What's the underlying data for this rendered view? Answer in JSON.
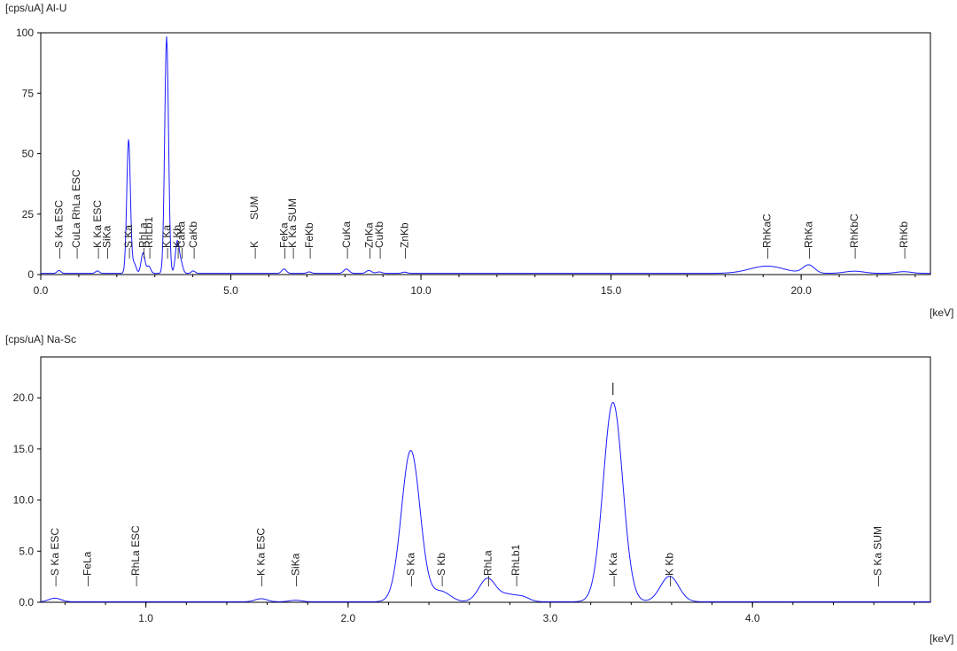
{
  "chart_data": [
    {
      "type": "line",
      "ylabel": "[cps/uA] Al-U",
      "xlabel": "[keV]",
      "xlim": [
        0,
        23.4
      ],
      "ylim": [
        0,
        100
      ],
      "x_ticks": [
        {
          "value": 0,
          "label": "0.0"
        },
        {
          "value": 5,
          "label": "5.0"
        },
        {
          "value": 10,
          "label": "10.0"
        },
        {
          "value": 15,
          "label": "15.0"
        },
        {
          "value": 20,
          "label": "20.0"
        }
      ],
      "y_ticks": [
        {
          "value": 0,
          "label": "0"
        },
        {
          "value": 25,
          "label": "25"
        },
        {
          "value": 50,
          "label": "50"
        },
        {
          "value": 75,
          "label": "75"
        },
        {
          "value": 100,
          "label": "100"
        }
      ],
      "peaks": [
        {
          "x": 0.48,
          "h": 1.2,
          "w": 0.05
        },
        {
          "x": 1.49,
          "h": 1.0,
          "w": 0.05
        },
        {
          "x": 2.31,
          "h": 55.5,
          "w": 0.048
        },
        {
          "x": 2.46,
          "h": 4.0,
          "w": 0.05
        },
        {
          "x": 2.69,
          "h": 8.5,
          "w": 0.05
        },
        {
          "x": 2.84,
          "h": 3.0,
          "w": 0.05
        },
        {
          "x": 3.31,
          "h": 98,
          "w": 0.05
        },
        {
          "x": 3.59,
          "h": 13,
          "w": 0.05
        },
        {
          "x": 3.69,
          "h": 4.0,
          "w": 0.05
        },
        {
          "x": 4.01,
          "h": 1.0,
          "w": 0.05
        },
        {
          "x": 6.4,
          "h": 1.8,
          "w": 0.06
        },
        {
          "x": 7.06,
          "h": 0.6,
          "w": 0.06
        },
        {
          "x": 8.04,
          "h": 1.8,
          "w": 0.07
        },
        {
          "x": 8.63,
          "h": 1.2,
          "w": 0.07
        },
        {
          "x": 8.9,
          "h": 0.6,
          "w": 0.07
        },
        {
          "x": 9.57,
          "h": 0.5,
          "w": 0.07
        },
        {
          "x": 19.1,
          "h": 3.0,
          "w": 0.45
        },
        {
          "x": 20.2,
          "h": 3.4,
          "w": 0.15
        },
        {
          "x": 21.4,
          "h": 0.9,
          "w": 0.25
        },
        {
          "x": 22.7,
          "h": 0.7,
          "w": 0.2
        }
      ],
      "baseline": 0.5,
      "annotations": [
        {
          "x": 0.48,
          "top": "S Ka ESC",
          "bottom": ""
        },
        {
          "x": 0.93,
          "top": "CuLa RhLa ESC",
          "bottom": ""
        },
        {
          "x": 1.49,
          "top": "K Ka ESC",
          "bottom": ""
        },
        {
          "x": 1.74,
          "top": "SiKa",
          "bottom": ""
        },
        {
          "x": 2.31,
          "top": "S Ka",
          "bottom": ""
        },
        {
          "x": 2.69,
          "top": "RhLa",
          "bottom": ""
        },
        {
          "x": 2.84,
          "top": "RhLb1",
          "bottom": ""
        },
        {
          "x": 3.31,
          "top": "K Ka",
          "bottom": ""
        },
        {
          "x": 3.59,
          "top": "K Kb",
          "bottom": ""
        },
        {
          "x": 3.69,
          "top": "CaKa",
          "bottom": ""
        },
        {
          "x": 4.01,
          "top": "CaKb",
          "bottom": ""
        },
        {
          "x": 5.62,
          "top": "K",
          "bottom": "SUM"
        },
        {
          "x": 6.4,
          "top": "FeKa",
          "bottom": ""
        },
        {
          "x": 6.62,
          "top": "K Ka SUM",
          "bottom": ""
        },
        {
          "x": 7.06,
          "top": "FeKb",
          "bottom": ""
        },
        {
          "x": 8.04,
          "top": "CuKa",
          "bottom": ""
        },
        {
          "x": 8.63,
          "top": "ZnKa",
          "bottom": ""
        },
        {
          "x": 8.9,
          "top": "CuKb",
          "bottom": ""
        },
        {
          "x": 9.57,
          "top": "ZnKb",
          "bottom": ""
        },
        {
          "x": 19.1,
          "top": "RhKaC",
          "bottom": ""
        },
        {
          "x": 20.2,
          "top": "RhKa",
          "bottom": ""
        },
        {
          "x": 21.4,
          "top": "RhKbC",
          "bottom": ""
        },
        {
          "x": 22.7,
          "top": "RhKb",
          "bottom": ""
        }
      ]
    },
    {
      "type": "line",
      "ylabel": "[cps/uA] Na-Sc",
      "xlabel": "[keV]",
      "xlim": [
        0.48,
        4.88
      ],
      "ylim": [
        0,
        24
      ],
      "x_ticks": [
        {
          "value": 1,
          "label": "1.0"
        },
        {
          "value": 2,
          "label": "2.0"
        },
        {
          "value": 3,
          "label": "3.0"
        },
        {
          "value": 4,
          "label": "4.0"
        }
      ],
      "y_ticks": [
        {
          "value": 0,
          "label": "0.0"
        },
        {
          "value": 5,
          "label": "5.0"
        },
        {
          "value": 10,
          "label": "10.0"
        },
        {
          "value": 15,
          "label": "15.0"
        },
        {
          "value": 20,
          "label": "20.0"
        }
      ],
      "peaks": [
        {
          "x": 0.55,
          "h": 0.35,
          "w": 0.03
        },
        {
          "x": 1.57,
          "h": 0.3,
          "w": 0.03
        },
        {
          "x": 1.74,
          "h": 0.15,
          "w": 0.03
        },
        {
          "x": 2.31,
          "h": 14.8,
          "w": 0.046
        },
        {
          "x": 2.46,
          "h": 1.0,
          "w": 0.045
        },
        {
          "x": 2.69,
          "h": 2.3,
          "w": 0.042
        },
        {
          "x": 2.79,
          "h": 0.6,
          "w": 0.035
        },
        {
          "x": 2.86,
          "h": 0.5,
          "w": 0.035
        },
        {
          "x": 3.31,
          "h": 19.5,
          "w": 0.048
        },
        {
          "x": 3.59,
          "h": 2.5,
          "w": 0.045
        }
      ],
      "baseline": 0.05,
      "annotations": [
        {
          "x": 0.55,
          "top": "S Ka ESC",
          "bottom": ""
        },
        {
          "x": 0.71,
          "top": "FeLa",
          "bottom": ""
        },
        {
          "x": 0.95,
          "top": "RhLa ESC",
          "bottom": ""
        },
        {
          "x": 1.57,
          "top": "K Ka ESC",
          "bottom": ""
        },
        {
          "x": 1.74,
          "top": "SiKa",
          "bottom": ""
        },
        {
          "x": 2.31,
          "top": "S Ka",
          "bottom": ""
        },
        {
          "x": 2.46,
          "top": "S Kb",
          "bottom": ""
        },
        {
          "x": 2.69,
          "top": "RhLa",
          "bottom": ""
        },
        {
          "x": 2.83,
          "top": "RhLb1",
          "bottom": ""
        },
        {
          "x": 3.31,
          "top": "K Ka",
          "bottom": ""
        },
        {
          "x": 3.59,
          "top": "K Kb",
          "bottom": ""
        },
        {
          "x": 4.62,
          "top": "S Ka SUM",
          "bottom": ""
        }
      ]
    }
  ]
}
